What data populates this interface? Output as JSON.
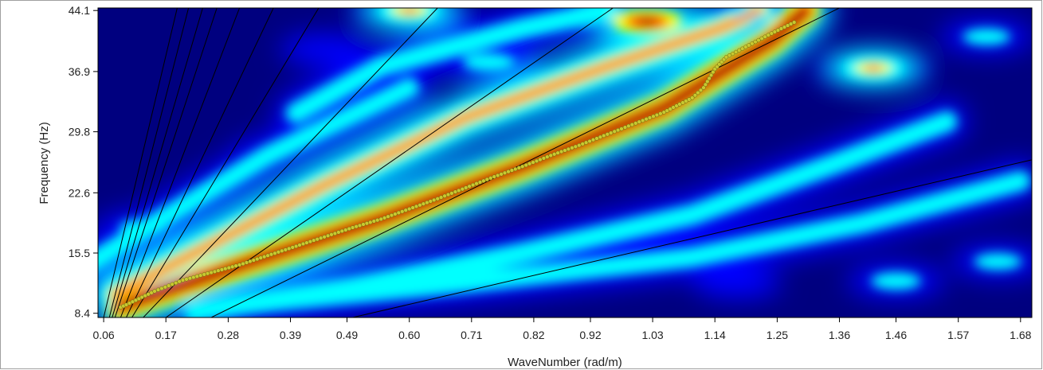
{
  "chart_data": {
    "type": "heatmap",
    "xlabel": "WaveNumber (rad/m)",
    "ylabel": "Frequency (Hz)",
    "xlim": [
      0.05,
      1.7
    ],
    "ylim": [
      7.9,
      44.4
    ],
    "x_ticks": [
      "0.06",
      "0.17",
      "0.28",
      "0.39",
      "0.49",
      "0.60",
      "0.71",
      "0.82",
      "0.92",
      "1.03",
      "1.14",
      "1.25",
      "1.36",
      "1.46",
      "1.57",
      "1.68"
    ],
    "y_ticks": [
      "8.4",
      "15.5",
      "22.6",
      "29.8",
      "36.9",
      "44.1"
    ],
    "colormap": [
      "#00007f",
      "#0000ff",
      "#00ffff",
      "#ffff00",
      "#ff0000",
      "#7f0000"
    ],
    "background_color": "#00007f",
    "energy_ridges": [
      {
        "k": [
          0.09,
          0.3,
          0.55,
          0.8,
          1.05,
          1.24,
          1.3
        ],
        "f": [
          9.2,
          14.0,
          19.5,
          25.7,
          32.6,
          40.5,
          44.1
        ],
        "intensity": 1.0
      },
      {
        "k": [
          0.08,
          0.25,
          0.45,
          0.7,
          0.95,
          1.15,
          1.22
        ],
        "f": [
          10.6,
          16.5,
          23.5,
          31.5,
          37.5,
          42.0,
          44.1
        ],
        "intensity": 0.75
      },
      {
        "k": [
          0.22,
          0.5,
          0.8,
          1.1,
          1.35,
          1.55
        ],
        "f": [
          8.6,
          11.5,
          15.5,
          20.0,
          26.0,
          31.0
        ],
        "intensity": 0.45
      },
      {
        "k": [
          0.3,
          0.7,
          1.1,
          1.4,
          1.68
        ],
        "f": [
          9.4,
          12.0,
          15.0,
          19.0,
          24.0
        ],
        "intensity": 0.4
      },
      {
        "k": [
          0.03,
          0.15,
          0.35,
          0.6
        ],
        "f": [
          14.0,
          19.0,
          27.0,
          35.0
        ],
        "intensity": 0.4
      },
      {
        "k": [
          0.4,
          0.55,
          0.8,
          0.95
        ],
        "f": [
          32.0,
          37.5,
          42.0,
          44.1
        ],
        "intensity": 0.45
      }
    ],
    "energy_spots": [
      {
        "k": 1.02,
        "f": 42.8,
        "intensity": 0.9
      },
      {
        "k": 0.6,
        "f": 44.1,
        "intensity": 0.7
      },
      {
        "k": 1.2,
        "f": 43.5,
        "intensity": 0.5
      },
      {
        "k": 1.42,
        "f": 37.3,
        "intensity": 0.7
      },
      {
        "k": 0.74,
        "f": 38.0,
        "intensity": 0.5
      },
      {
        "k": 0.45,
        "f": 39.5,
        "intensity": 0.35
      },
      {
        "k": 1.62,
        "f": 41.0,
        "intensity": 0.4
      },
      {
        "k": 1.46,
        "f": 12.2,
        "intensity": 0.45
      },
      {
        "k": 1.64,
        "f": 14.5,
        "intensity": 0.4
      },
      {
        "k": 1.18,
        "f": 12.0,
        "intensity": 0.35
      },
      {
        "k": 0.36,
        "f": 27.5,
        "intensity": 0.25
      },
      {
        "k": 0.13,
        "f": 18.5,
        "intensity": 0.4
      }
    ],
    "picks": {
      "k": [
        0.09,
        0.1,
        0.15,
        0.2,
        0.25,
        0.3,
        0.35,
        0.4,
        0.45,
        0.5,
        0.55,
        0.6,
        0.65,
        0.7,
        0.75,
        0.8,
        0.85,
        0.9,
        0.95,
        1.0,
        1.05,
        1.1,
        1.12,
        1.14,
        1.16,
        1.2,
        1.24,
        1.28
      ],
      "f": [
        9.1,
        9.4,
        11.0,
        12.3,
        13.2,
        14.1,
        15.2,
        16.3,
        17.4,
        18.5,
        19.5,
        20.7,
        21.9,
        23.2,
        24.5,
        25.7,
        27.0,
        28.2,
        29.5,
        30.8,
        32.1,
        33.8,
        35.0,
        37.2,
        38.6,
        40.0,
        41.4,
        42.7
      ],
      "color": "#c8c830"
    },
    "velocity_lines": [
      {
        "k": [
          0.06,
          0.19
        ],
        "f": [
          7.9,
          44.4
        ]
      },
      {
        "k": [
          0.07,
          0.21
        ],
        "f": [
          7.9,
          44.4
        ]
      },
      {
        "k": [
          0.075,
          0.235
        ],
        "f": [
          7.9,
          44.4
        ]
      },
      {
        "k": [
          0.08,
          0.26
        ],
        "f": [
          7.9,
          44.4
        ]
      },
      {
        "k": [
          0.09,
          0.3
        ],
        "f": [
          7.9,
          44.4
        ]
      },
      {
        "k": [
          0.1,
          0.36
        ],
        "f": [
          7.9,
          44.4
        ]
      },
      {
        "k": [
          0.11,
          0.44
        ],
        "f": [
          7.9,
          44.4
        ]
      },
      {
        "k": [
          0.13,
          0.65
        ],
        "f": [
          7.9,
          44.4
        ]
      },
      {
        "k": [
          0.17,
          0.96
        ],
        "f": [
          7.9,
          44.4
        ]
      },
      {
        "k": [
          0.25,
          1.36
        ],
        "f": [
          7.9,
          44.4
        ]
      },
      {
        "k": [
          0.5,
          1.7
        ],
        "f": [
          7.9,
          26.5
        ]
      }
    ]
  }
}
